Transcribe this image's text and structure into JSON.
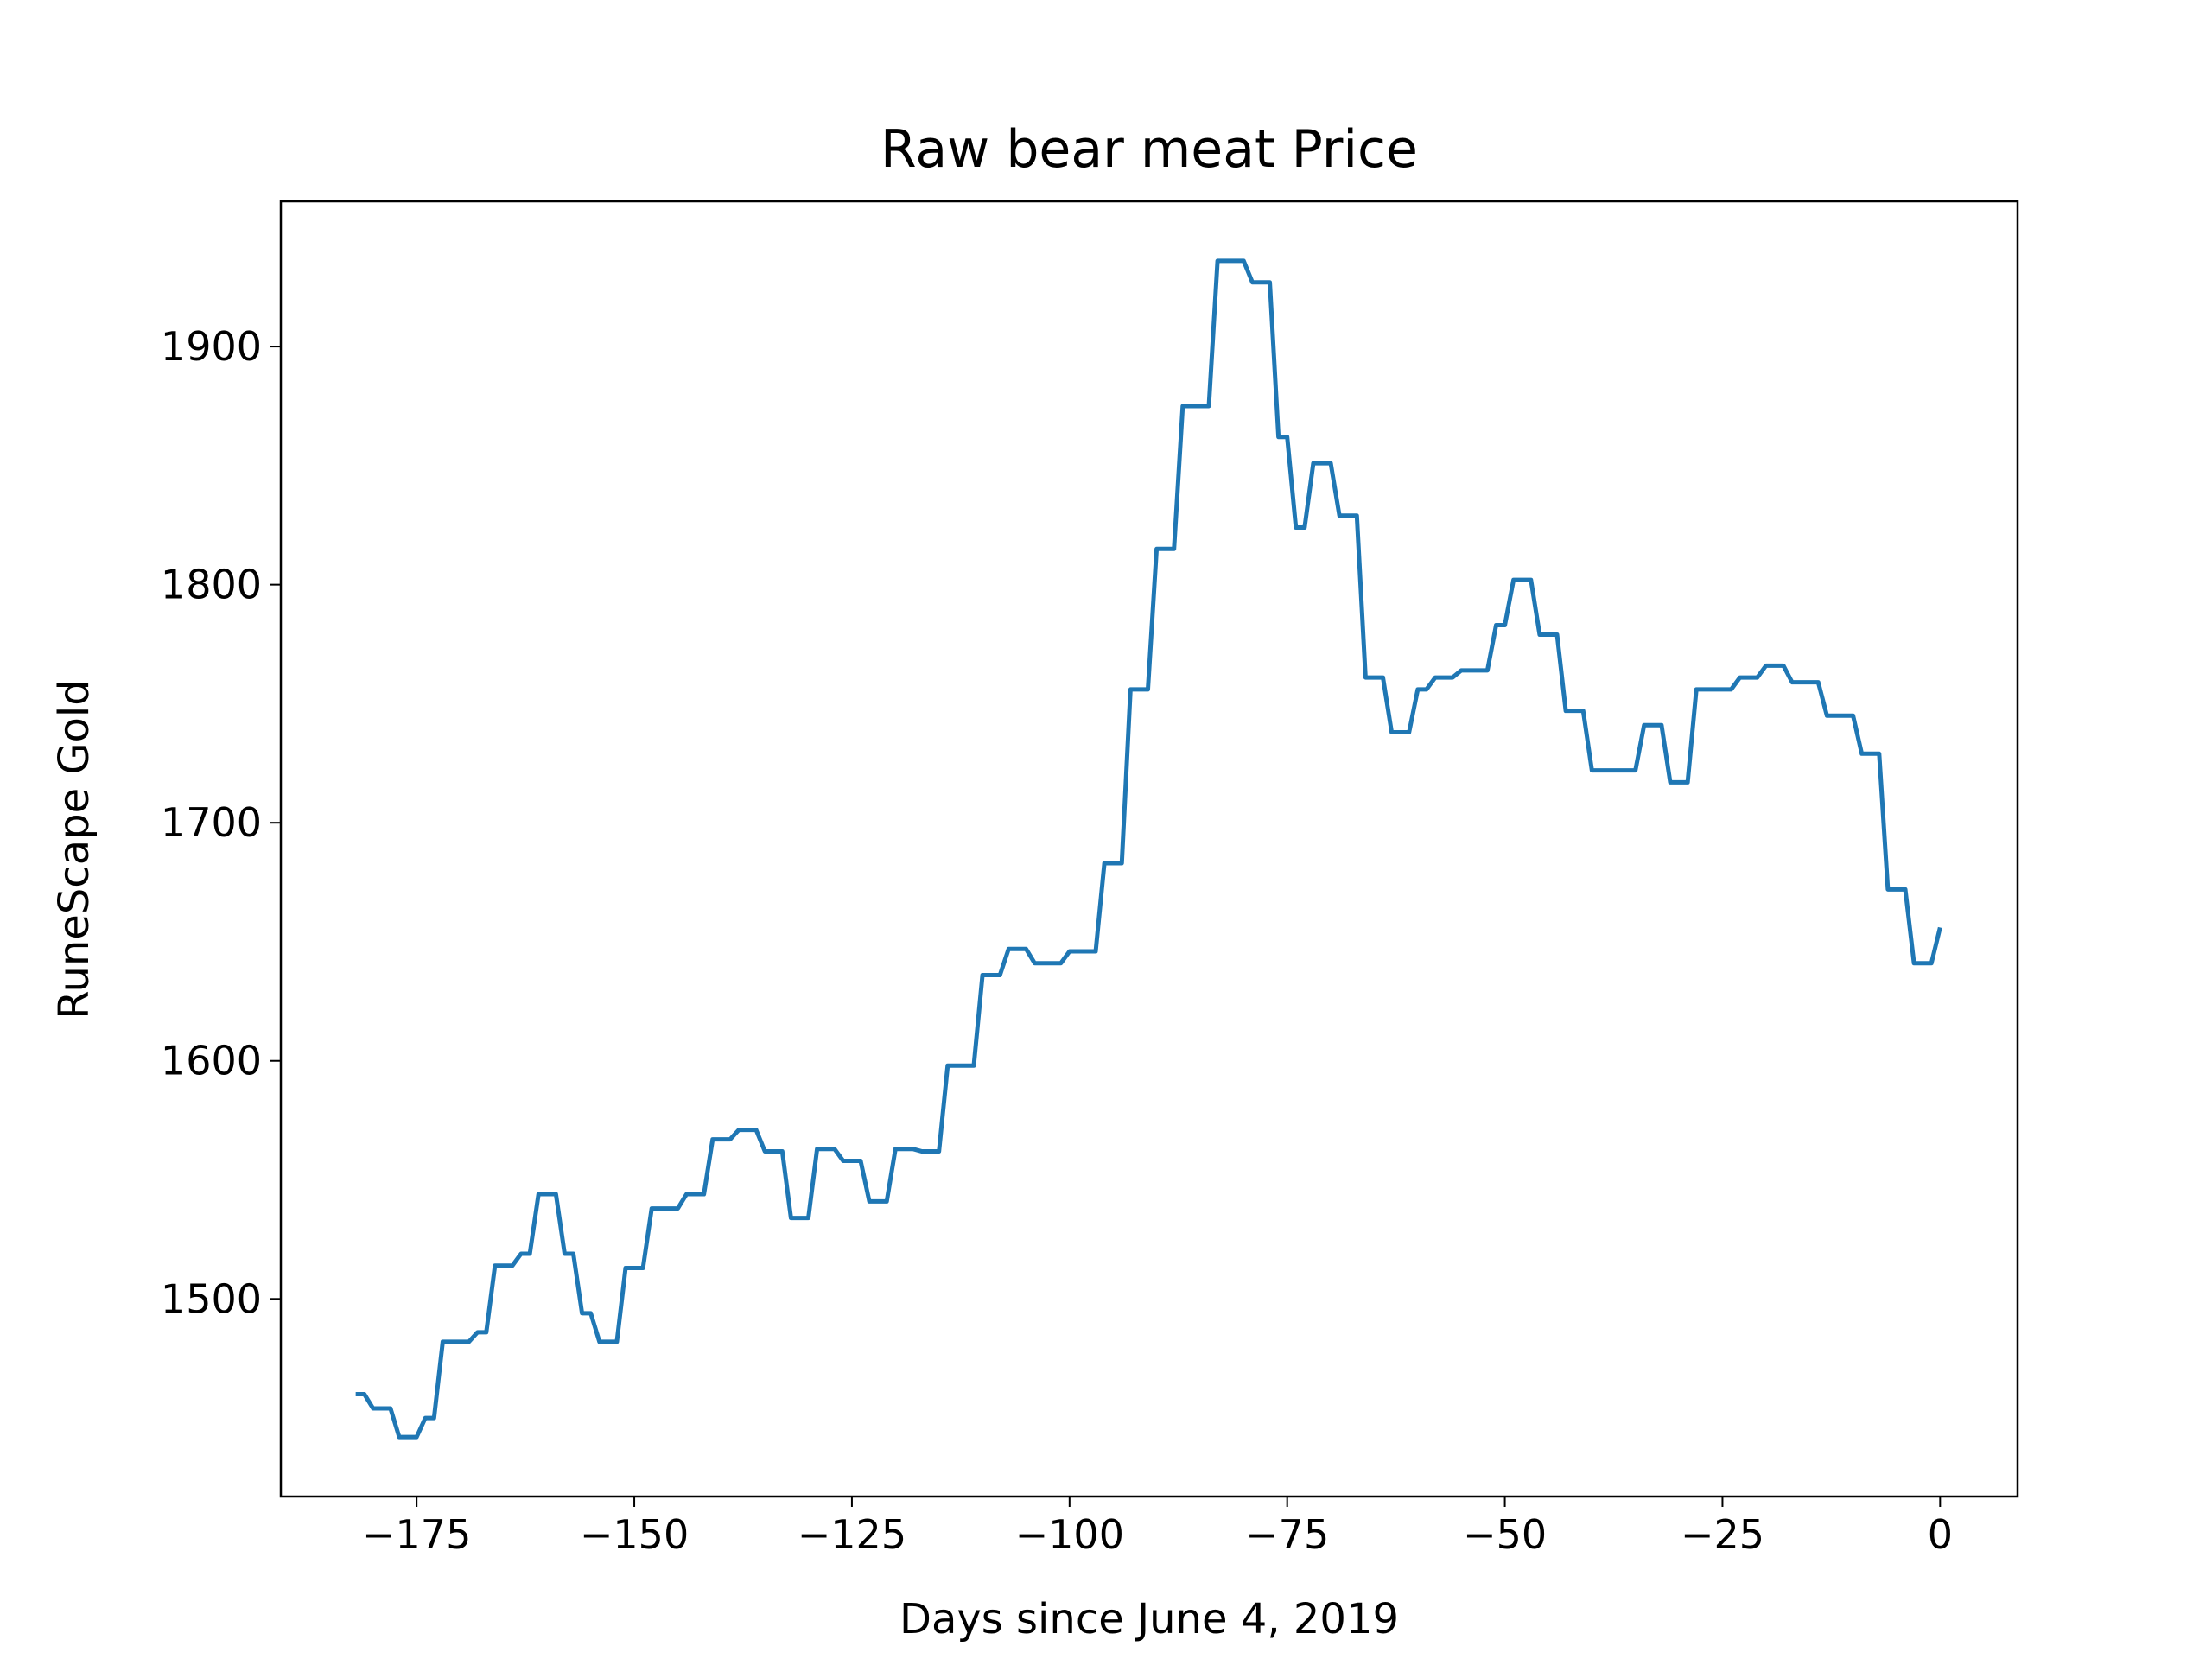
{
  "chart_data": {
    "type": "line",
    "title": "Raw bear meat Price",
    "xlabel": "Days since June 4, 2019",
    "ylabel": "RuneScape Gold",
    "x": [
      -182,
      -181,
      -180,
      -178,
      -177,
      -175,
      -174,
      -173,
      -172,
      -169,
      -168,
      -167,
      -166,
      -164,
      -163,
      -162,
      -161,
      -159,
      -158,
      -157,
      -156,
      -155,
      -154,
      -152,
      -151,
      -149,
      -148,
      -145,
      -144,
      -142,
      -141,
      -139,
      -138,
      -136,
      -135,
      -133,
      -132,
      -130,
      -129,
      -127,
      -126,
      -124,
      -123,
      -121,
      -120,
      -118,
      -117,
      -115,
      -114,
      -111,
      -110,
      -108,
      -107,
      -105,
      -104,
      -101,
      -100,
      -97,
      -96,
      -94,
      -93,
      -91,
      -90,
      -88,
      -87,
      -84,
      -83,
      -80,
      -79,
      -77,
      -76,
      -75,
      -74,
      -73,
      -72,
      -70,
      -69,
      -67,
      -66,
      -64,
      -63,
      -61,
      -60,
      -59,
      -58,
      -56,
      -55,
      -52,
      -51,
      -50,
      -49,
      -47,
      -46,
      -44,
      -43,
      -41,
      -40,
      -35,
      -34,
      -32,
      -31,
      -29,
      -28,
      -24,
      -23,
      -21,
      -20,
      -18,
      -17,
      -14,
      -13,
      -10,
      -9,
      -7,
      -6,
      -4,
      -3,
      -1,
      0
    ],
    "series": [
      {
        "name": "Raw bear meat",
        "color": "#1f77b4",
        "values": [
          1460,
          1460,
          1454,
          1454,
          1442,
          1442,
          1450,
          1450,
          1482,
          1482,
          1486,
          1486,
          1514,
          1514,
          1519,
          1519,
          1544,
          1544,
          1519,
          1519,
          1494,
          1494,
          1482,
          1482,
          1513,
          1513,
          1538,
          1538,
          1544,
          1544,
          1567,
          1567,
          1571,
          1571,
          1562,
          1562,
          1534,
          1534,
          1563,
          1563,
          1558,
          1558,
          1541,
          1541,
          1563,
          1563,
          1562,
          1562,
          1598,
          1598,
          1636,
          1636,
          1647,
          1647,
          1641,
          1641,
          1646,
          1646,
          1683,
          1683,
          1756,
          1756,
          1815,
          1815,
          1875,
          1875,
          1936,
          1936,
          1927,
          1927,
          1862,
          1862,
          1824,
          1824,
          1851,
          1851,
          1829,
          1829,
          1761,
          1761,
          1738,
          1738,
          1756,
          1756,
          1761,
          1761,
          1764,
          1764,
          1783,
          1783,
          1802,
          1802,
          1779,
          1779,
          1747,
          1747,
          1722,
          1722,
          1741,
          1741,
          1717,
          1717,
          1756,
          1756,
          1761,
          1761,
          1766,
          1766,
          1759,
          1759,
          1745,
          1745,
          1729,
          1729,
          1672,
          1672,
          1641,
          1641,
          1656
        ]
      }
    ],
    "xlim": [
      -190.6,
      8.9
    ],
    "ylim": [
      1417,
      1961
    ],
    "xticks": [
      {
        "value": -175,
        "label": "−175"
      },
      {
        "value": -150,
        "label": "−150"
      },
      {
        "value": -125,
        "label": "−125"
      },
      {
        "value": -100,
        "label": "−100"
      },
      {
        "value": -75,
        "label": "−75"
      },
      {
        "value": -50,
        "label": "−50"
      },
      {
        "value": -25,
        "label": "−25"
      },
      0
    ],
    "yticks": [
      1500,
      1600,
      1700,
      1800,
      1900
    ]
  }
}
